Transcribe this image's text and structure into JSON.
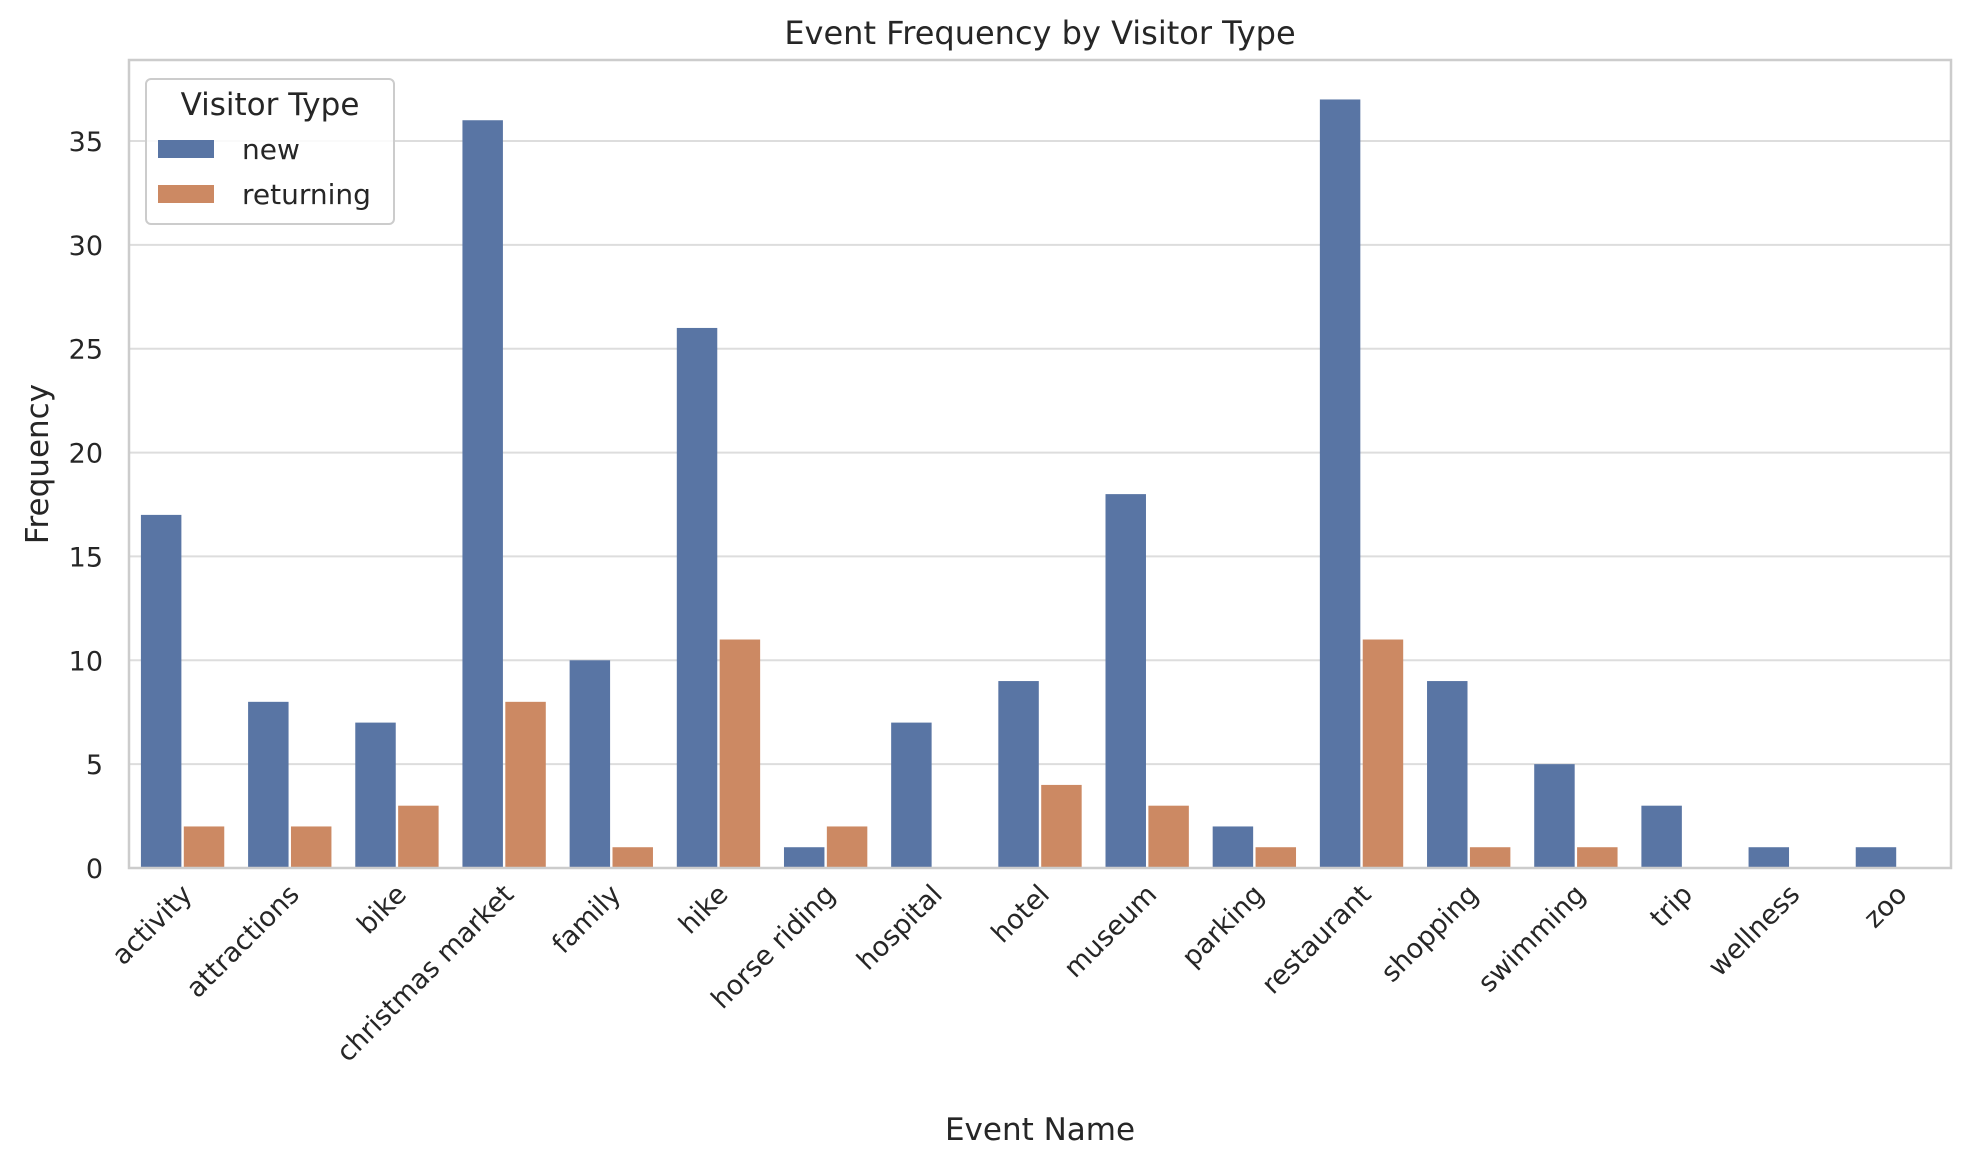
{
  "chart_data": {
    "type": "bar",
    "title": "Event Frequency by Visitor Type",
    "xlabel": "Event Name",
    "ylabel": "Frequency",
    "ylim": [
      0,
      38.9
    ],
    "yticks": [
      0,
      5,
      10,
      15,
      20,
      25,
      30,
      35
    ],
    "grid": "horizontal",
    "legend": {
      "title": "Visitor Type",
      "placement": "top-left"
    },
    "categories": [
      "activity",
      "attractions",
      "bike",
      "christmas market",
      "family",
      "hike",
      "horse riding",
      "hospital",
      "hotel",
      "museum",
      "parking",
      "restaurant",
      "shopping",
      "swimming",
      "trip",
      "wellness",
      "zoo"
    ],
    "series": [
      {
        "name": "new",
        "color": "#5975a4",
        "values": [
          17,
          8,
          7,
          36,
          10,
          26,
          1,
          7,
          9,
          18,
          2,
          37,
          9,
          5,
          3,
          1,
          1
        ]
      },
      {
        "name": "returning",
        "color": "#cc8963",
        "values": [
          2,
          2,
          3,
          8,
          1,
          11,
          2,
          null,
          4,
          3,
          1,
          11,
          1,
          1,
          null,
          null,
          null
        ]
      }
    ]
  }
}
